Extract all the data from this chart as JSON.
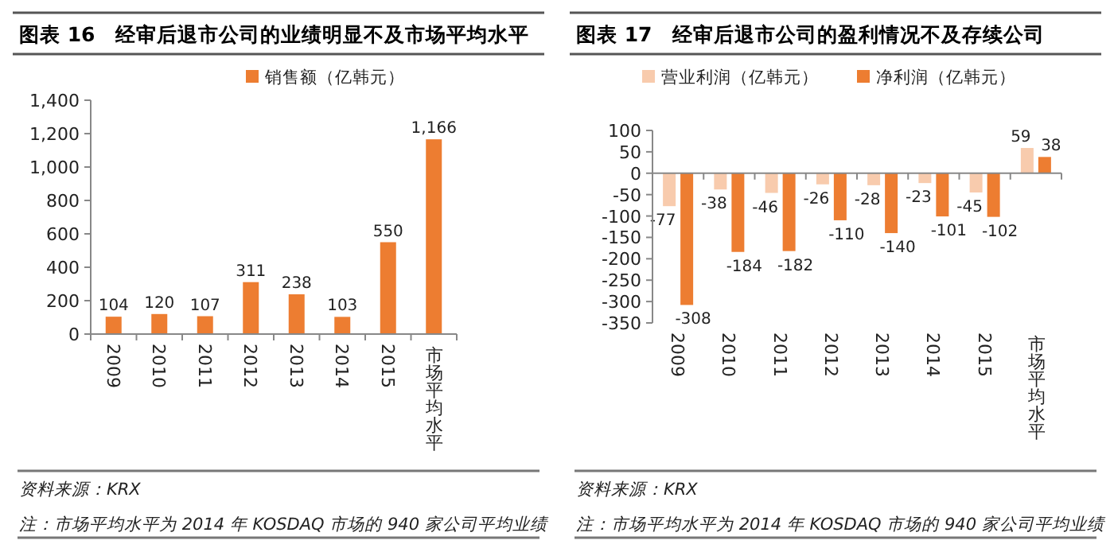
{
  "chart_data": [
    {
      "type": "bar",
      "title": "图表 16　经审后退市公司的业绩明显不及市场平均水平",
      "categories": [
        "2009",
        "2010",
        "2011",
        "2012",
        "2013",
        "2014",
        "2015",
        "市场平均水平"
      ],
      "series": [
        {
          "name": "销售额（亿韩元）",
          "color": "#ed7d31",
          "values": [
            104,
            120,
            107,
            311,
            238,
            103,
            550,
            1166
          ]
        }
      ],
      "ylim": [
        0,
        1400
      ],
      "yticks": [
        0,
        200,
        400,
        600,
        800,
        {
          "value": 1000,
          "label": "1,000"
        },
        {
          "value": 1200,
          "label": "1,200"
        },
        {
          "value": 1400,
          "label": "1,400"
        }
      ],
      "legend": "top",
      "value_labels": [
        "104",
        "120",
        "107",
        "311",
        "238",
        "103",
        "550",
        "1,166"
      ],
      "annotations": [
        "资料来源：KRX",
        "注：市场平均水平为 2014 年 KOSDAQ 市场的 940 家公司平均业绩"
      ]
    },
    {
      "type": "bar",
      "title": "图表 17　经审后退市公司的盈利情况不及存续公司",
      "categories": [
        "2009",
        "2010",
        "2011",
        "2012",
        "2013",
        "2014",
        "2015",
        "市场平均水平"
      ],
      "series": [
        {
          "name": "营业利润（亿韩元）",
          "color": "#f8cbad",
          "values": [
            -77,
            -38,
            -46,
            -26,
            -28,
            -23,
            -45,
            59
          ]
        },
        {
          "name": "净利润（亿韩元）",
          "color": "#ed7d31",
          "values": [
            -308,
            -184,
            -182,
            -110,
            -140,
            -101,
            -102,
            38
          ]
        }
      ],
      "ylim": [
        -350,
        100
      ],
      "yticks": [
        -350,
        -300,
        -250,
        -200,
        -150,
        -100,
        -50,
        0,
        50,
        100
      ],
      "data_labels": true,
      "legend": "top",
      "annotations": [
        "资料来源：KRX",
        "注：市场平均水平为 2014 年 KOSDAQ 市场的 940 家公司平均业绩"
      ]
    }
  ]
}
